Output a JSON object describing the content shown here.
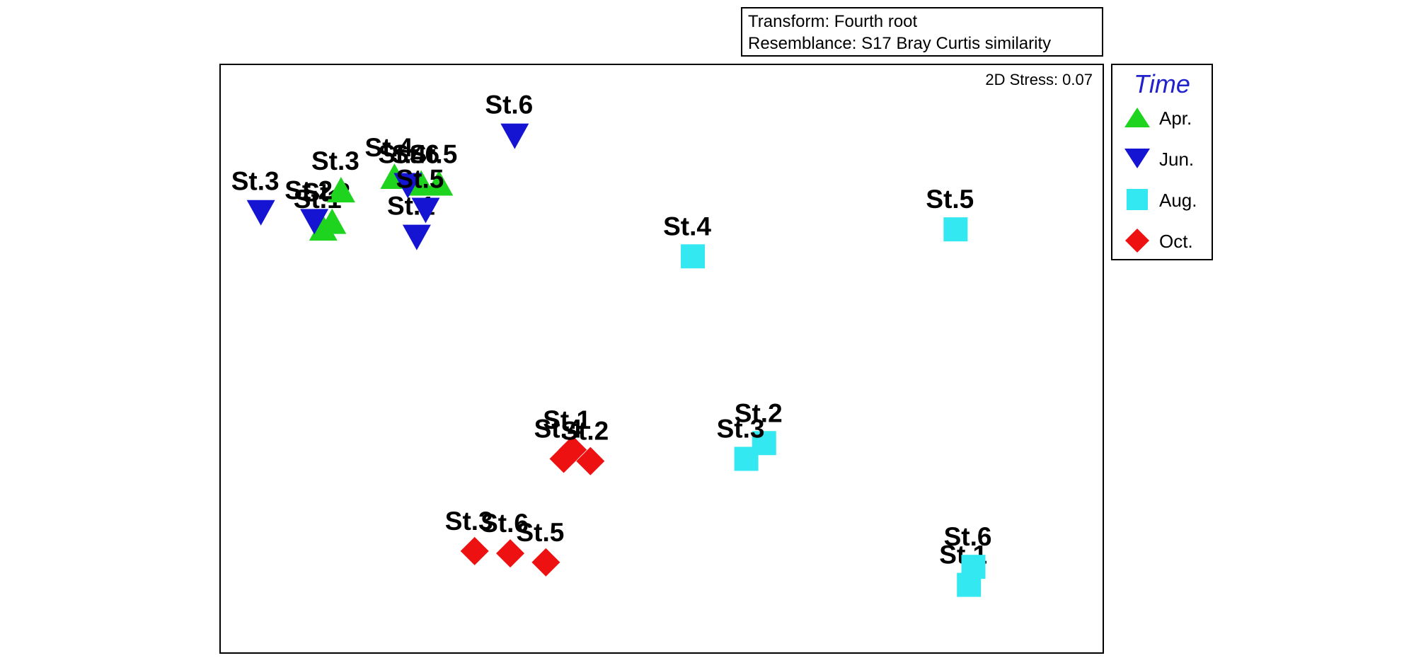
{
  "info_box": {
    "transform": "Transform: Fourth root",
    "resemblance": "Resemblance: S17 Bray Curtis similarity"
  },
  "stress_label": "2D Stress: 0.07",
  "legend": {
    "title": "Time",
    "items": [
      {
        "key": "apr",
        "label": "Apr.",
        "shape": "triangle-up",
        "color": "#1ed41e"
      },
      {
        "key": "jun",
        "label": "Jun.",
        "shape": "triangle-down",
        "color": "#1414d2"
      },
      {
        "key": "aug",
        "label": "Aug.",
        "shape": "square",
        "color": "#33e8f0"
      },
      {
        "key": "oct",
        "label": "Oct.",
        "shape": "diamond",
        "color": "#ee1111"
      }
    ]
  },
  "chart_data": {
    "type": "scatter",
    "title": "",
    "xlabel": "",
    "ylabel": "",
    "grid": false,
    "legend_position": "right",
    "note": "2D Stress: 0.07",
    "series": [
      {
        "name": "Apr.",
        "points": [
          {
            "label": "St.1",
            "x": -0.54,
            "y": 0.64
          },
          {
            "label": "St.2",
            "x": -0.52,
            "y": 0.67
          },
          {
            "label": "St.3",
            "x": -0.5,
            "y": 0.81
          },
          {
            "label": "St.4",
            "x": -0.38,
            "y": 0.87
          },
          {
            "label": "St.5",
            "x": -0.28,
            "y": 0.84
          },
          {
            "label": "St.6",
            "x": -0.32,
            "y": 0.84
          }
        ]
      },
      {
        "name": "Jun.",
        "points": [
          {
            "label": "St.1",
            "x": -0.33,
            "y": 0.61
          },
          {
            "label": "St.2",
            "x": -0.56,
            "y": 0.68
          },
          {
            "label": "St.3",
            "x": -0.68,
            "y": 0.72
          },
          {
            "label": "St.4",
            "x": -0.35,
            "y": 0.84
          },
          {
            "label": "St.5",
            "x": -0.31,
            "y": 0.73
          },
          {
            "label": "St.6",
            "x": -0.11,
            "y": 1.06
          }
        ]
      },
      {
        "name": "Aug.",
        "points": [
          {
            "label": "St.1",
            "x": 0.91,
            "y": -0.94
          },
          {
            "label": "St.2",
            "x": 0.45,
            "y": -0.31
          },
          {
            "label": "St.3",
            "x": 0.41,
            "y": -0.38
          },
          {
            "label": "St.4",
            "x": 0.29,
            "y": 0.52
          },
          {
            "label": "St.5",
            "x": 0.88,
            "y": 0.64
          },
          {
            "label": "St.6",
            "x": 0.92,
            "y": -0.86
          }
        ]
      },
      {
        "name": "Oct.",
        "points": [
          {
            "label": "St.1",
            "x": 0.02,
            "y": -0.34
          },
          {
            "label": "St.2",
            "x": 0.06,
            "y": -0.39
          },
          {
            "label": "St.3",
            "x": -0.2,
            "y": -0.79
          },
          {
            "label": "St.4",
            "x": 0.0,
            "y": -0.38
          },
          {
            "label": "St.5",
            "x": -0.04,
            "y": -0.84
          },
          {
            "label": "St.6",
            "x": -0.12,
            "y": -0.8
          }
        ]
      }
    ],
    "xlim": [
      -0.77,
      1.21
    ],
    "ylim": [
      -1.24,
      1.37
    ]
  }
}
